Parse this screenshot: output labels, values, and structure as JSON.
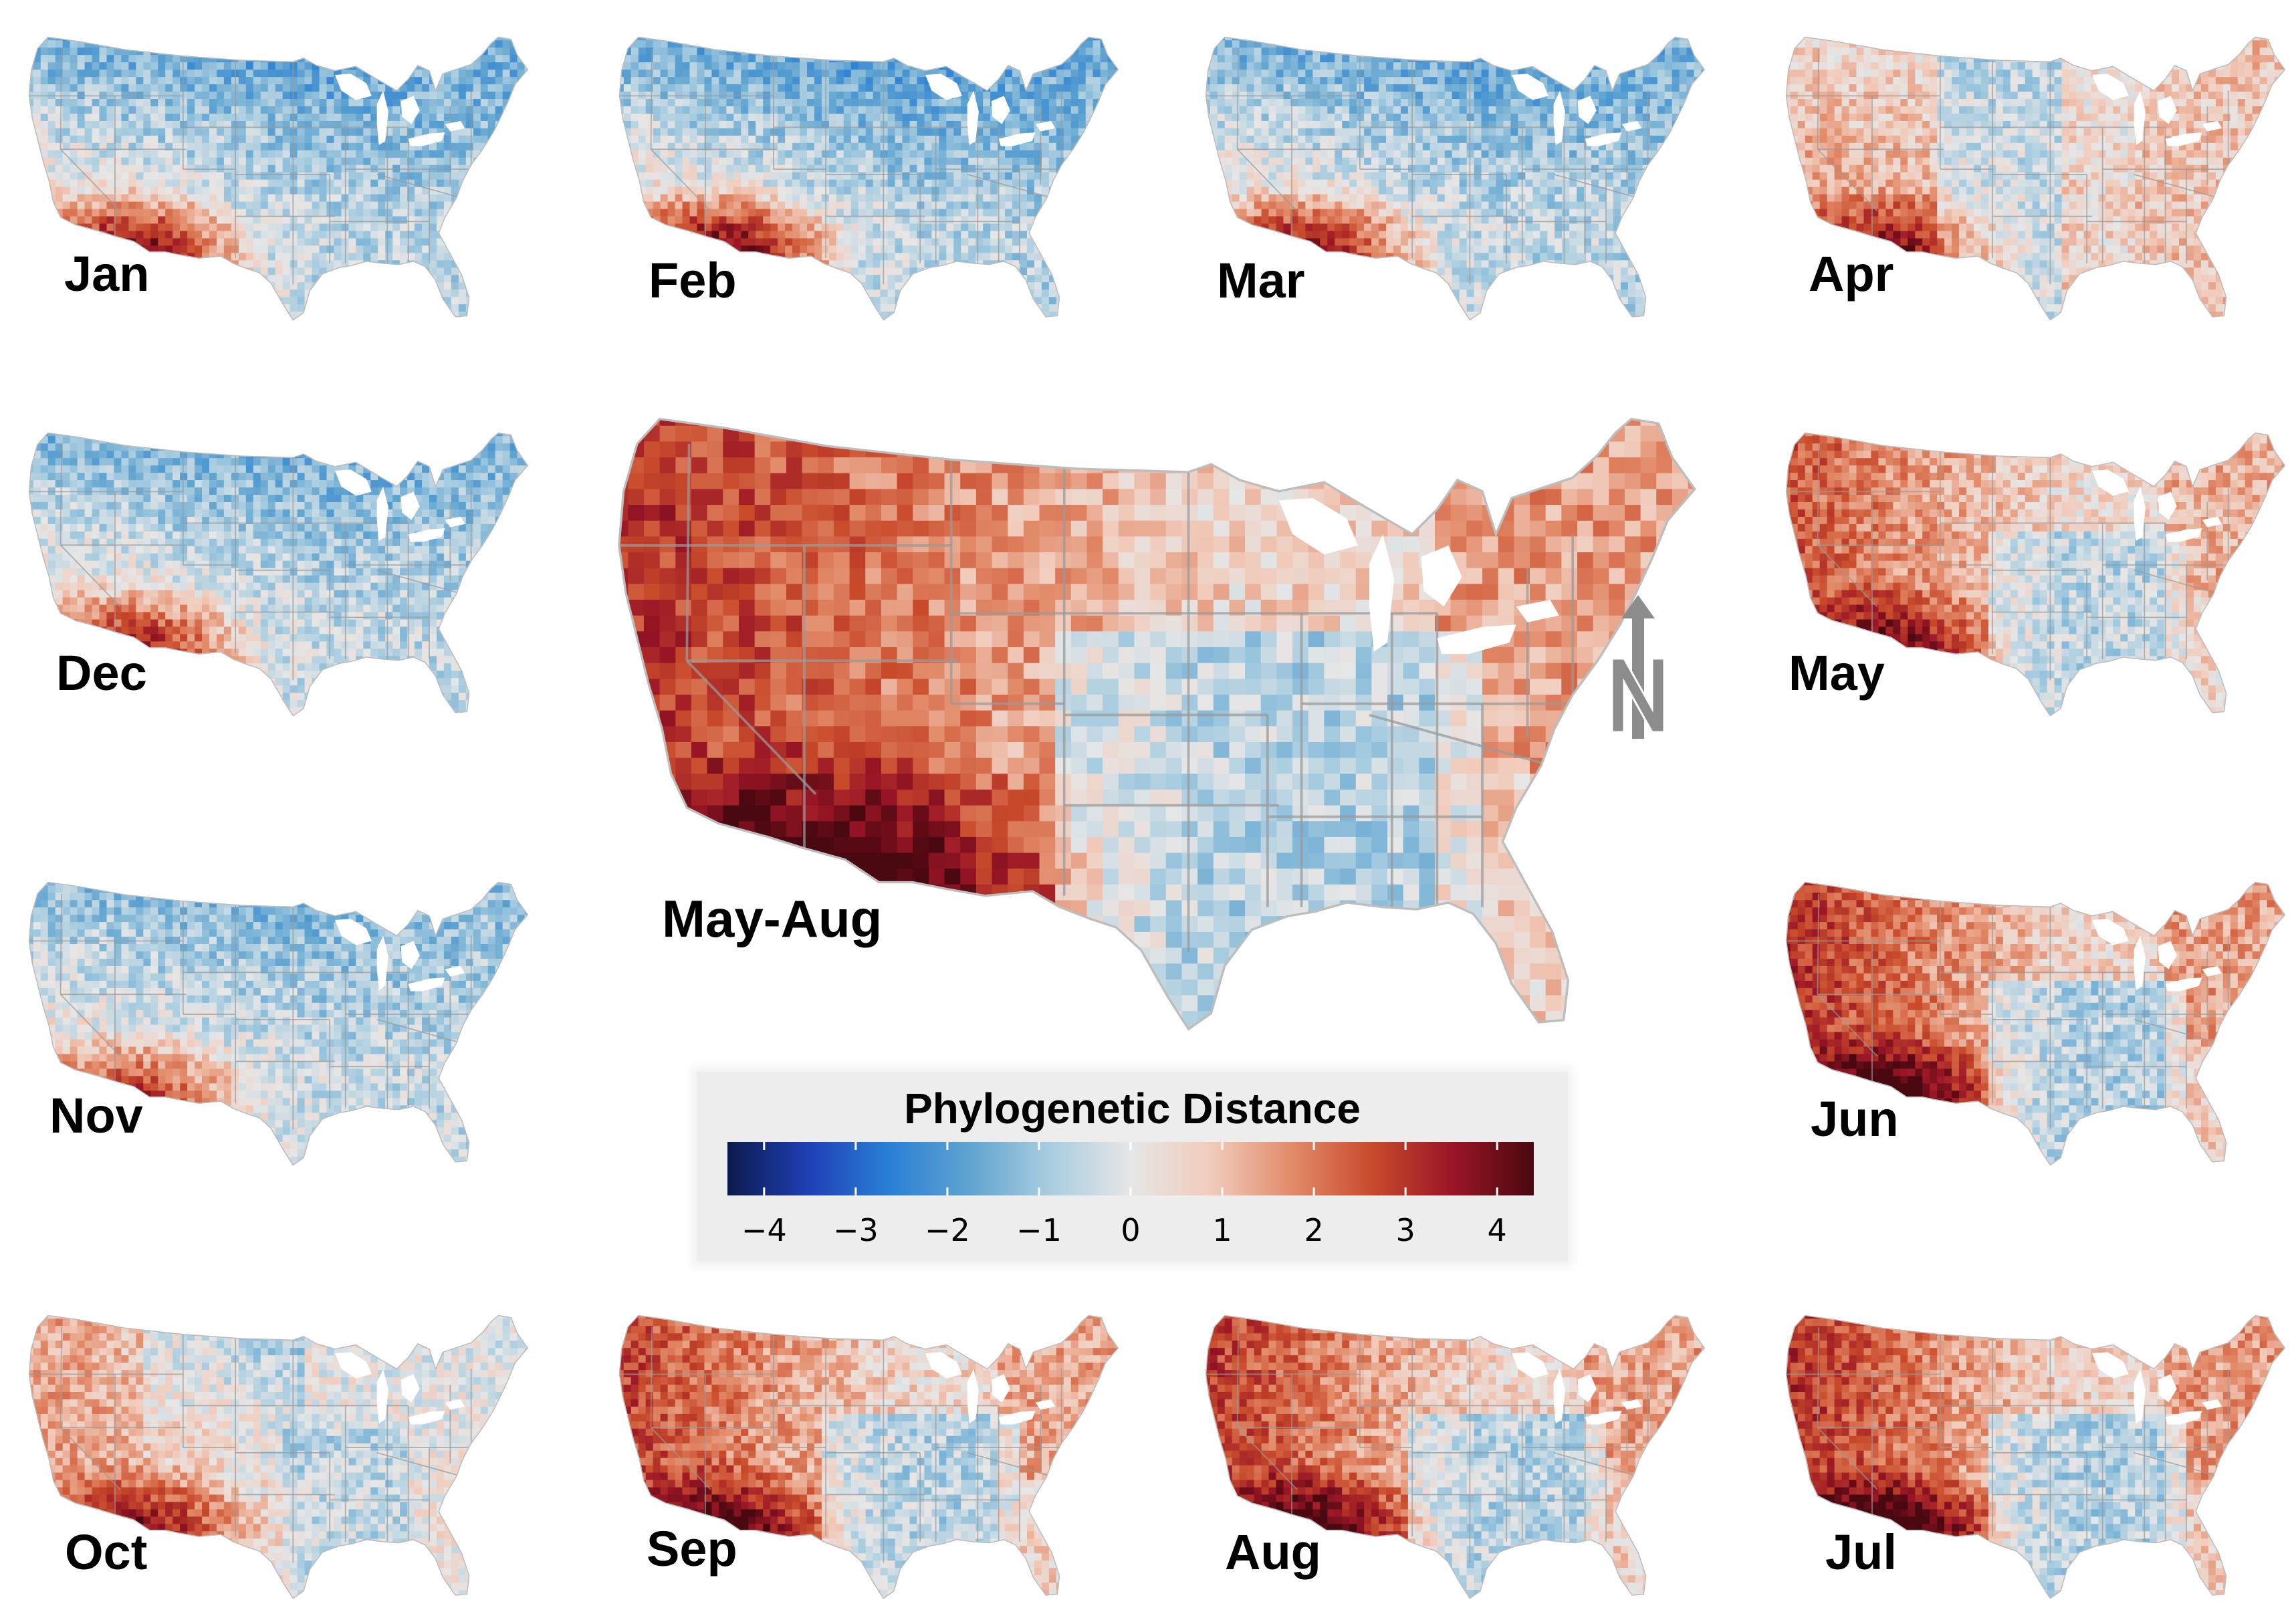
{
  "panels": [
    {
      "id": "jan",
      "label": "Jan",
      "mode": "winter",
      "strength": 1.0
    },
    {
      "id": "feb",
      "label": "Feb",
      "mode": "winter",
      "strength": 1.05
    },
    {
      "id": "mar",
      "label": "Mar",
      "mode": "winter",
      "strength": 0.95
    },
    {
      "id": "apr",
      "label": "Apr",
      "mode": "spring",
      "strength": 0.8
    },
    {
      "id": "dec",
      "label": "Dec",
      "mode": "winter",
      "strength": 0.85
    },
    {
      "id": "may",
      "label": "May",
      "mode": "summer",
      "strength": 0.8
    },
    {
      "id": "nov",
      "label": "Nov",
      "mode": "winter",
      "strength": 0.75
    },
    {
      "id": "jun",
      "label": "Jun",
      "mode": "summer",
      "strength": 1.0
    },
    {
      "id": "oct",
      "label": "Oct",
      "mode": "fall",
      "strength": 0.8
    },
    {
      "id": "sep",
      "label": "Sep",
      "mode": "summer",
      "strength": 0.9
    },
    {
      "id": "aug",
      "label": "Aug",
      "mode": "summer",
      "strength": 0.95
    },
    {
      "id": "jul",
      "label": "Jul",
      "mode": "summer",
      "strength": 1.0
    }
  ],
  "main_panel": {
    "id": "may-aug",
    "label": "May-Aug",
    "mode": "summer",
    "strength": 1.0
  },
  "legend": {
    "title": "Phylogenetic Distance",
    "ticks": [
      "−4",
      "−3",
      "−2",
      "−1",
      "0",
      "1",
      "2",
      "3",
      "4"
    ],
    "tick_values": [
      -4,
      -3,
      -2,
      -1,
      0,
      1,
      2,
      3,
      4
    ],
    "range": [
      -4.4,
      4.4
    ],
    "colors": [
      "#0b1a4d",
      "#1f3fb5",
      "#2a7fd6",
      "#5fa3d0",
      "#a9cde0",
      "#e6e6e6",
      "#f1cbbb",
      "#e28b6a",
      "#c84a2b",
      "#9a1526",
      "#4a0810"
    ]
  },
  "north_arrow": {
    "letter": "N",
    "icon": "north-arrow-icon",
    "color": "#8c8c8c"
  }
}
